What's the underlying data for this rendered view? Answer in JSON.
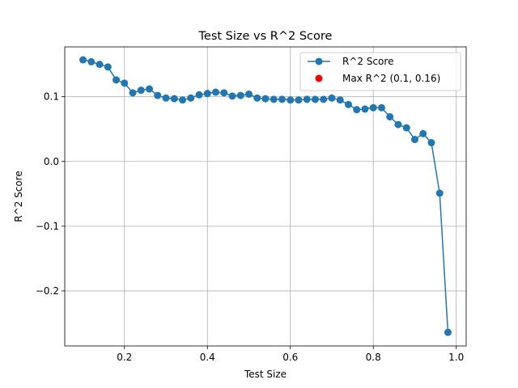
{
  "chart_data": {
    "type": "line",
    "title": "Test Size vs R^2 Score",
    "xlabel": "Test Size",
    "ylabel": "R^2 Score",
    "xlim": [
      0.056,
      1.024
    ],
    "ylim": [
      -0.285,
      0.177
    ],
    "x_ticks": [
      0.2,
      0.4,
      0.6,
      0.8,
      1.0
    ],
    "x_tick_labels": [
      "0.2",
      "0.4",
      "0.6",
      "0.8",
      "1.0"
    ],
    "y_ticks": [
      -0.2,
      -0.1,
      0.0,
      0.1
    ],
    "y_tick_labels": [
      "−0.2",
      "−0.1",
      "0.0",
      "0.1"
    ],
    "grid": true,
    "legend_position": "upper-right",
    "colors": {
      "line": "#1f77b4",
      "max_point": "#ff0000"
    },
    "series": [
      {
        "name": "R^2 Score",
        "x": [
          0.1,
          0.12,
          0.14,
          0.16,
          0.18,
          0.2,
          0.22,
          0.24,
          0.26,
          0.28,
          0.3,
          0.32,
          0.34,
          0.36,
          0.38,
          0.4,
          0.42,
          0.44,
          0.46,
          0.48,
          0.5,
          0.52,
          0.54,
          0.56,
          0.58,
          0.6,
          0.62,
          0.64,
          0.66,
          0.68,
          0.7,
          0.72,
          0.74,
          0.76,
          0.78,
          0.8,
          0.82,
          0.84,
          0.86,
          0.88,
          0.9,
          0.92,
          0.94,
          0.96,
          0.98
        ],
        "y": [
          0.157,
          0.154,
          0.15,
          0.146,
          0.126,
          0.121,
          0.106,
          0.11,
          0.112,
          0.102,
          0.098,
          0.097,
          0.095,
          0.098,
          0.103,
          0.105,
          0.107,
          0.106,
          0.101,
          0.102,
          0.104,
          0.098,
          0.097,
          0.096,
          0.096,
          0.095,
          0.095,
          0.096,
          0.096,
          0.096,
          0.098,
          0.095,
          0.088,
          0.08,
          0.081,
          0.083,
          0.083,
          0.069,
          0.057,
          0.052,
          0.034,
          0.043,
          0.029,
          -0.049,
          -0.264
        ]
      }
    ],
    "max_point": {
      "name": "Max R^2 (0.1, 0.16)",
      "x": 0.1,
      "y": 0.16
    }
  }
}
